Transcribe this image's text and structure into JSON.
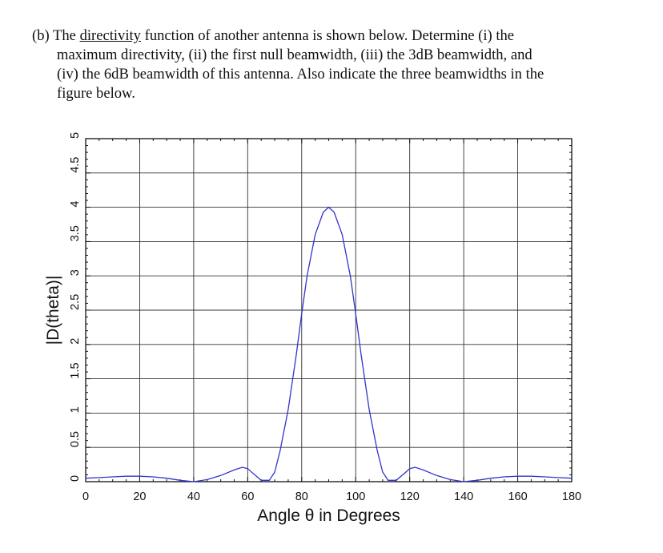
{
  "question": {
    "label": "(b)",
    "text_before_underline": "The ",
    "underlined": "directivity",
    "text_line1_after": " function of another antenna is shown below.  Determine (i) the",
    "line2": "maximum directivity, (ii) the first null beamwidth, (iii) the 3dB beamwidth, and",
    "line3": "(iv) the 6dB beamwidth of this antenna. Also indicate the three beamwidths in the",
    "line4": "figure below."
  },
  "chart_data": {
    "type": "line",
    "title": "",
    "xlabel": "Angle θ in Degrees",
    "ylabel": "|D(theta)|",
    "xlim": [
      0,
      180
    ],
    "ylim": [
      0,
      5
    ],
    "xticks": [
      0,
      20,
      40,
      60,
      80,
      100,
      120,
      140,
      160,
      180
    ],
    "xtick_labels": [
      "0",
      "20",
      "40",
      "60",
      "80",
      "100",
      "120",
      "140",
      "160",
      "180"
    ],
    "yticks": [
      0,
      0.5,
      1,
      1.5,
      2,
      2.5,
      3,
      3.5,
      4,
      4.5,
      5
    ],
    "ytick_labels": [
      "0",
      "0.5",
      "1",
      "1.5",
      "2",
      "2.5",
      "3",
      "3.5",
      "4",
      "4.5",
      "5"
    ],
    "grid": true,
    "series": [
      {
        "color": "#3333cc",
        "x": [
          0,
          5,
          10,
          15,
          20,
          25,
          30,
          35,
          40,
          45,
          50,
          55,
          58,
          60,
          62,
          65,
          68,
          70,
          72,
          75,
          78,
          80,
          82,
          85,
          88,
          90,
          92,
          95,
          98,
          100,
          102,
          105,
          108,
          110,
          112,
          115,
          118,
          120,
          122,
          125,
          130,
          135,
          140,
          145,
          150,
          155,
          160,
          165,
          170,
          175,
          180
        ],
        "y": [
          0.05,
          0.06,
          0.07,
          0.08,
          0.08,
          0.07,
          0.05,
          0.02,
          0.0,
          0.03,
          0.09,
          0.17,
          0.21,
          0.19,
          0.12,
          0.02,
          0.02,
          0.14,
          0.45,
          1.05,
          1.85,
          2.45,
          3.0,
          3.6,
          3.93,
          4.0,
          3.93,
          3.6,
          3.0,
          2.45,
          1.85,
          1.05,
          0.45,
          0.14,
          0.02,
          0.02,
          0.12,
          0.19,
          0.21,
          0.17,
          0.09,
          0.03,
          0.0,
          0.02,
          0.05,
          0.07,
          0.08,
          0.08,
          0.07,
          0.06,
          0.05
        ]
      }
    ]
  }
}
